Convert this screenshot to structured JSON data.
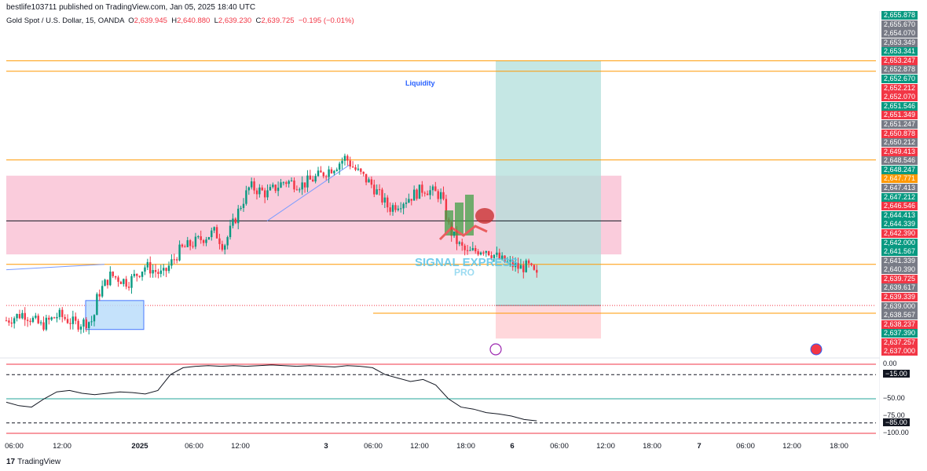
{
  "header": {
    "published": "bestlife103711 published on TradingView.com, Jan 05, 2025 18:40 UTC",
    "symbol": "Gold Spot / U.S. Dollar, 15, OANDA",
    "o_label": "O",
    "o": "2,639.945",
    "h_label": "H",
    "h": "2,640.880",
    "l_label": "L",
    "l": "2,639.230",
    "c_label": "C",
    "c": "2,639.725",
    "change": "−0.195 (−0.01%)"
  },
  "annotations": {
    "liquidity": "Liquidity",
    "watermark_top": "SIGNAL EXPRESS",
    "watermark_bottom": "PRO"
  },
  "footer": {
    "logo": "17",
    "brand": "TradingView"
  },
  "colors": {
    "up": "#089981",
    "down": "#f23645",
    "gray": "#787b86",
    "orange": "#ff9800",
    "zone": "#f8bbd0",
    "tp": "#b2dfdb",
    "sl": "#ffcdd2",
    "osc": "#131722"
  },
  "chart_data": {
    "type": "line",
    "symbol": "Gold Spot / U.S. Dollar, 15, OANDA",
    "y_unit": "USD",
    "ylim": [
      2637.0,
      2656.0
    ],
    "time_ticks": [
      "06:00",
      "12:00",
      "2025",
      "06:00",
      "12:00",
      "3",
      "06:00",
      "12:00",
      "18:00",
      "6",
      "06:00",
      "12:00",
      "18:00",
      "7",
      "06:00",
      "12:00",
      "18:00"
    ],
    "price_labels": [
      {
        "v": "2,655.878",
        "c": "#089981"
      },
      {
        "v": "2,655.670",
        "c": "#787b86"
      },
      {
        "v": "2,654.070",
        "c": "#787b86"
      },
      {
        "v": "2,653.349",
        "c": "#787b86"
      },
      {
        "v": "2,653.341",
        "c": "#089981"
      },
      {
        "v": "2,653.247",
        "c": "#f23645"
      },
      {
        "v": "2,652.878",
        "c": "#787b86"
      },
      {
        "v": "2,652.670",
        "c": "#089981"
      },
      {
        "v": "2,652.212",
        "c": "#f23645"
      },
      {
        "v": "2,652.070",
        "c": "#f23645"
      },
      {
        "v": "2,651.546",
        "c": "#089981"
      },
      {
        "v": "2,651.349",
        "c": "#f23645"
      },
      {
        "v": "2,651.247",
        "c": "#787b86"
      },
      {
        "v": "2,650.878",
        "c": "#f23645"
      },
      {
        "v": "2,650.212",
        "c": "#787b86"
      },
      {
        "v": "2,649.413",
        "c": "#f23645"
      },
      {
        "v": "2,648.546",
        "c": "#787b86"
      },
      {
        "v": "2,648.247",
        "c": "#089981"
      },
      {
        "v": "2,647.771",
        "c": "#ff9800"
      },
      {
        "v": "2,647.413",
        "c": "#787b86"
      },
      {
        "v": "2,647.212",
        "c": "#089981"
      },
      {
        "v": "2,646.546",
        "c": "#f23645"
      },
      {
        "v": "2,644.413",
        "c": "#089981"
      },
      {
        "v": "2,644.339",
        "c": "#089981"
      },
      {
        "v": "2,642.390",
        "c": "#f23645"
      },
      {
        "v": "2,642.000",
        "c": "#089981"
      },
      {
        "v": "2,641.567",
        "c": "#089981"
      },
      {
        "v": "2,641.339",
        "c": "#787b86"
      },
      {
        "v": "2,640.390",
        "c": "#787b86"
      },
      {
        "v": "2,639.725",
        "c": "#f23645"
      },
      {
        "v": "2,639.617",
        "c": "#787b86"
      },
      {
        "v": "2,639.339",
        "c": "#f23645"
      },
      {
        "v": "2,639.000",
        "c": "#787b86"
      },
      {
        "v": "2,638.567",
        "c": "#787b86"
      },
      {
        "v": "2,638.237",
        "c": "#f23645"
      },
      {
        "v": "2,637.390",
        "c": "#089981"
      },
      {
        "v": "2,637.257",
        "c": "#f23645"
      },
      {
        "v": "2,637.000",
        "c": "#f23645"
      }
    ],
    "price_path": [
      [
        0.0,
        2638.9
      ],
      [
        0.02,
        2639.3
      ],
      [
        0.04,
        2638.6
      ],
      [
        0.06,
        2639.2
      ],
      [
        0.08,
        2638.7
      ],
      [
        0.1,
        2638.9
      ],
      [
        0.105,
        2640.3
      ],
      [
        0.12,
        2641.4
      ],
      [
        0.14,
        2641.0
      ],
      [
        0.16,
        2641.9
      ],
      [
        0.18,
        2641.4
      ],
      [
        0.2,
        2642.8
      ],
      [
        0.22,
        2643.3
      ],
      [
        0.24,
        2643.8
      ],
      [
        0.25,
        2643.0
      ],
      [
        0.27,
        2645.3
      ],
      [
        0.28,
        2646.3
      ],
      [
        0.3,
        2645.9
      ],
      [
        0.32,
        2646.6
      ],
      [
        0.34,
        2646.4
      ],
      [
        0.36,
        2646.9
      ],
      [
        0.38,
        2647.5
      ],
      [
        0.39,
        2647.9
      ],
      [
        0.4,
        2647.3
      ],
      [
        0.42,
        2646.4
      ],
      [
        0.44,
        2645.1
      ],
      [
        0.46,
        2645.6
      ],
      [
        0.48,
        2646.2
      ],
      [
        0.5,
        2645.8
      ],
      [
        0.51,
        2643.9
      ],
      [
        0.52,
        2643.1
      ],
      [
        0.53,
        2642.6
      ],
      [
        0.55,
        2642.9
      ],
      [
        0.57,
        2642.2
      ],
      [
        0.59,
        2641.8
      ],
      [
        0.6,
        2641.9
      ],
      [
        0.61,
        2641.3
      ]
    ],
    "horizontal_levels": [
      {
        "price": 2653.25,
        "color": "#ff9800"
      },
      {
        "price": 2652.67,
        "color": "#ff9800"
      },
      {
        "price": 2647.77,
        "color": "#ff9800"
      },
      {
        "price": 2644.4,
        "color": "#131722"
      },
      {
        "price": 2642.0,
        "color": "#ff9800"
      },
      {
        "price": 2639.3,
        "color": "#ff9800"
      }
    ],
    "current_price": 2639.725,
    "zone": {
      "top": 2646.9,
      "bottom": 2642.55
    },
    "position": {
      "entry": 2639.725,
      "target": 2653.247,
      "stop": 2637.9
    },
    "oscillator": {
      "ylim": [
        -100,
        0
      ],
      "levels": [
        "0.00",
        "−15.00",
        "−50.00",
        "−75.00",
        "−85.00",
        "−100.00"
      ],
      "values": [
        -55,
        -60,
        -62,
        -50,
        -40,
        -38,
        -42,
        -44,
        -42,
        -40,
        -41,
        -43,
        -38,
        -15,
        -5,
        -3,
        -2,
        -3,
        -2,
        -3,
        -2,
        -1,
        -2,
        -3,
        -2,
        -3,
        -4,
        -2,
        -3,
        -5,
        -15,
        -20,
        -25,
        -22,
        -30,
        -50,
        -62,
        -65,
        -70,
        -72,
        -75,
        -80,
        -82
      ]
    }
  }
}
